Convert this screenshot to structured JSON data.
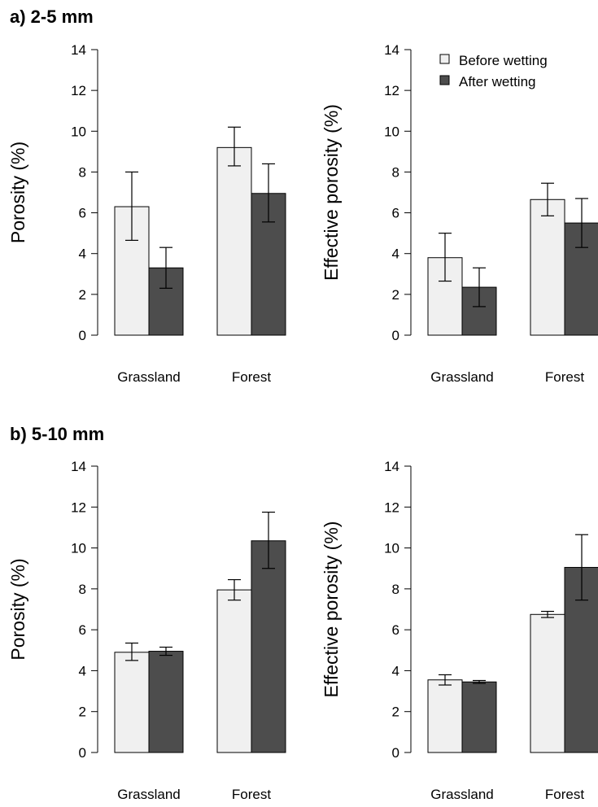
{
  "panels": {
    "a": {
      "title": "a) 2-5 mm"
    },
    "b": {
      "title": "b) 5-10 mm"
    }
  },
  "legend": {
    "before": "Before wetting",
    "after": "After wetting"
  },
  "colors": {
    "before": "#f0f0f0",
    "after": "#4d4d4d",
    "outline": "#000000"
  },
  "chart_data": [
    {
      "type": "bar",
      "panel": "a",
      "ylabel": "Porosity (%)",
      "categories": [
        "Grassland",
        "Forest"
      ],
      "ylim": [
        0,
        14
      ],
      "yticks": [
        0,
        2,
        4,
        6,
        8,
        10,
        12,
        14
      ],
      "series": [
        {
          "name": "Before wetting",
          "values": [
            6.3,
            9.2
          ],
          "err_low": [
            4.65,
            8.3
          ],
          "err_high": [
            8.0,
            10.2
          ]
        },
        {
          "name": "After wetting",
          "values": [
            3.3,
            6.95
          ],
          "err_low": [
            2.3,
            5.55
          ],
          "err_high": [
            4.3,
            8.4
          ]
        }
      ]
    },
    {
      "type": "bar",
      "panel": "a",
      "ylabel": "Effective porosity (%)",
      "categories": [
        "Grassland",
        "Forest"
      ],
      "ylim": [
        0,
        14
      ],
      "yticks": [
        0,
        2,
        4,
        6,
        8,
        10,
        12,
        14
      ],
      "legend_position": "top-right",
      "series": [
        {
          "name": "Before wetting",
          "values": [
            3.8,
            6.65
          ],
          "err_low": [
            2.65,
            5.85
          ],
          "err_high": [
            5.0,
            7.45
          ]
        },
        {
          "name": "After wetting",
          "values": [
            2.35,
            5.5
          ],
          "err_low": [
            1.4,
            4.3
          ],
          "err_high": [
            3.3,
            6.7
          ]
        }
      ]
    },
    {
      "type": "bar",
      "panel": "b",
      "ylabel": "Porosity (%)",
      "categories": [
        "Grassland",
        "Forest"
      ],
      "ylim": [
        0,
        14
      ],
      "yticks": [
        0,
        2,
        4,
        6,
        8,
        10,
        12,
        14
      ],
      "series": [
        {
          "name": "Before wetting",
          "values": [
            4.9,
            7.95
          ],
          "err_low": [
            4.5,
            7.45
          ],
          "err_high": [
            5.35,
            8.45
          ]
        },
        {
          "name": "After wetting",
          "values": [
            4.95,
            10.35
          ],
          "err_low": [
            4.75,
            9.0
          ],
          "err_high": [
            5.15,
            11.75
          ]
        }
      ]
    },
    {
      "type": "bar",
      "panel": "b",
      "ylabel": "Effective porosity (%)",
      "categories": [
        "Grassland",
        "Forest"
      ],
      "ylim": [
        0,
        14
      ],
      "yticks": [
        0,
        2,
        4,
        6,
        8,
        10,
        12,
        14
      ],
      "series": [
        {
          "name": "Before wetting",
          "values": [
            3.55,
            6.75
          ],
          "err_low": [
            3.3,
            6.6
          ],
          "err_high": [
            3.8,
            6.9
          ]
        },
        {
          "name": "After wetting",
          "values": [
            3.45,
            9.05
          ],
          "err_low": [
            3.38,
            7.45
          ],
          "err_high": [
            3.52,
            10.65
          ]
        }
      ]
    }
  ]
}
